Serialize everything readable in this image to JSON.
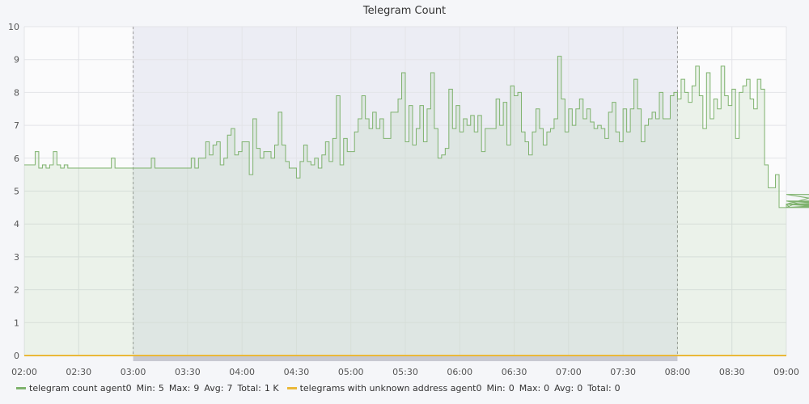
{
  "chart_data": {
    "type": "area",
    "title": "Telegram Count",
    "xlabel": "",
    "ylabel": "",
    "x_ticks": [
      "02:00",
      "02:30",
      "03:00",
      "03:30",
      "04:00",
      "04:30",
      "05:00",
      "05:30",
      "06:00",
      "06:30",
      "07:00",
      "07:30",
      "08:00",
      "08:30",
      "09:00"
    ],
    "y_ticks": [
      0,
      1,
      2,
      3,
      4,
      5,
      6,
      7,
      8,
      9,
      10
    ],
    "ylim": [
      0,
      10
    ],
    "xlim": [
      "02:00",
      "09:00"
    ],
    "grid": true,
    "legend_position": "bottom-left",
    "highlight_range": [
      "03:00",
      "08:00"
    ],
    "series": [
      {
        "name": "telegram count agent0",
        "color": "#7eb26d",
        "stats": {
          "min_label": "Min:",
          "min": "5",
          "max_label": "Max:",
          "max": "9",
          "avg_label": "Avg:",
          "avg": "7",
          "total_label": "Total:",
          "total": "1 K"
        },
        "step_minutes": 2,
        "values": [
          5.8,
          5.8,
          5.8,
          6.2,
          5.7,
          5.8,
          5.7,
          5.8,
          6.2,
          5.8,
          5.7,
          5.8,
          5.7,
          5.7,
          5.7,
          5.7,
          5.7,
          5.7,
          5.7,
          5.7,
          5.7,
          5.7,
          5.7,
          5.7,
          6.0,
          5.7,
          5.7,
          5.7,
          5.7,
          5.7,
          5.7,
          5.7,
          5.7,
          5.7,
          5.7,
          6.0,
          5.7,
          5.7,
          5.7,
          5.7,
          5.7,
          5.7,
          5.7,
          5.7,
          5.7,
          5.7,
          6.0,
          5.7,
          6.0,
          6.0,
          6.5,
          6.1,
          6.4,
          6.5,
          5.8,
          6.0,
          6.7,
          6.9,
          6.1,
          6.2,
          6.5,
          6.5,
          5.5,
          7.2,
          6.3,
          6.0,
          6.2,
          6.2,
          6.0,
          6.4,
          7.4,
          6.4,
          5.9,
          5.7,
          5.7,
          5.4,
          5.9,
          6.4,
          5.9,
          5.8,
          6.0,
          5.7,
          6.1,
          6.5,
          5.9,
          6.6,
          7.9,
          5.8,
          6.6,
          6.2,
          6.2,
          6.8,
          7.2,
          7.9,
          7.2,
          6.9,
          7.4,
          6.9,
          7.2,
          6.6,
          6.6,
          7.4,
          7.4,
          7.8,
          8.6,
          6.5,
          7.6,
          6.4,
          6.9,
          7.6,
          6.5,
          7.5,
          8.6,
          6.9,
          6.0,
          6.1,
          6.3,
          8.1,
          6.9,
          7.6,
          6.8,
          7.2,
          7.0,
          7.3,
          6.8,
          7.3,
          6.2,
          6.9,
          6.9,
          6.9,
          7.8,
          7.0,
          7.7,
          6.4,
          8.2,
          7.9,
          8.0,
          6.8,
          6.5,
          6.1,
          6.8,
          7.5,
          6.9,
          6.4,
          6.8,
          6.9,
          7.2,
          9.1,
          7.8,
          6.8,
          7.5,
          7.0,
          7.5,
          7.8,
          7.2,
          7.5,
          7.1,
          6.9,
          7.0,
          6.9,
          6.6,
          7.4,
          7.7,
          6.8,
          6.5,
          7.5,
          6.8,
          7.5,
          8.4,
          7.5,
          6.5,
          7.0,
          7.2,
          7.4,
          7.2,
          8.0,
          7.2,
          7.2,
          7.9,
          8.0,
          7.8,
          8.4,
          8.0,
          7.7,
          8.2,
          8.8,
          7.9,
          6.9,
          8.6,
          7.2,
          7.8,
          7.5,
          8.8,
          7.9,
          7.6,
          8.1,
          6.6,
          8.0,
          8.2,
          8.4,
          7.8,
          7.5,
          8.4,
          8.1,
          5.8,
          5.1,
          5.1,
          5.5,
          4.5,
          4.5,
          4.6,
          4.5,
          4.6,
          4.7,
          4.6,
          4.6,
          4.6,
          4.6,
          4.6,
          4.6,
          4.9,
          4.7,
          4.6,
          4.5,
          4.6,
          4.5,
          4.6,
          4.6,
          4.6,
          4.5,
          4.6,
          4.6,
          4.6,
          4.5,
          4.6,
          4.6,
          4.5,
          4.6,
          4.7,
          4.5,
          4.6,
          4.5,
          4.5,
          4.5,
          4.6,
          4.5,
          4.5,
          4.5,
          4.5,
          4.6,
          4.5,
          4.6,
          4.5,
          4.5,
          4.5,
          4.5,
          4.5,
          4.6,
          4.5,
          4.6,
          4.5,
          4.5,
          4.5,
          4.7,
          4.5,
          4.5,
          4.5,
          4.5,
          4.6,
          4.5,
          4.7,
          4.5,
          4.5,
          4.5,
          4.5,
          4.5,
          4.7,
          4.5,
          4.5,
          4.5,
          4.5,
          4.5,
          4.5,
          4.5,
          4.7,
          4.5,
          4.5,
          4.5,
          4.5,
          4.5
        ]
      },
      {
        "name": "telegrams with unknown address agent0",
        "color": "#eab839",
        "stats": {
          "min_label": "Min:",
          "min": "0",
          "max_label": "Max:",
          "max": "0",
          "avg_label": "Avg:",
          "avg": "0",
          "total_label": "Total:",
          "total": "0"
        },
        "step_minutes": 210,
        "values": [
          0,
          0,
          0
        ]
      }
    ]
  }
}
